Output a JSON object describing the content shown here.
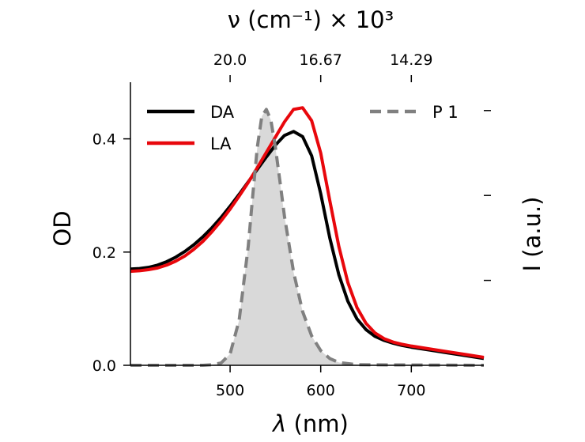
{
  "chart_data": {
    "type": "line",
    "title": "",
    "xlabel_symbol": "λ",
    "xlabel_unit": " (nm)",
    "ylabel": "OD",
    "y2label": "I (a.u.)",
    "x2label": "ν (cm⁻¹) × 10³",
    "xlim": [
      390,
      780
    ],
    "ylim": [
      0,
      0.5
    ],
    "xticks": [
      500,
      600,
      700
    ],
    "yticks": [
      0.0,
      0.2,
      0.4
    ],
    "ytick_labels": [
      "0.0",
      "0.2",
      "0.4"
    ],
    "x2ticks": [
      {
        "at_nm": 500,
        "label": "20.0"
      },
      {
        "at_nm": 600,
        "label": "16.67"
      },
      {
        "at_nm": 700,
        "label": "14.29"
      }
    ],
    "grid": false,
    "legend": {
      "left_position": "top-left",
      "right_position": "top-right"
    },
    "series": [
      {
        "name": "DA",
        "color": "#000000",
        "style": "solid",
        "x": [
          390,
          400,
          410,
          420,
          430,
          440,
          450,
          460,
          470,
          480,
          490,
          500,
          510,
          520,
          530,
          540,
          550,
          560,
          570,
          580,
          590,
          600,
          610,
          620,
          630,
          640,
          650,
          660,
          670,
          680,
          690,
          700,
          720,
          740,
          760,
          780
        ],
        "y": [
          0.17,
          0.171,
          0.173,
          0.177,
          0.183,
          0.191,
          0.201,
          0.213,
          0.227,
          0.243,
          0.261,
          0.281,
          0.302,
          0.324,
          0.346,
          0.368,
          0.389,
          0.406,
          0.413,
          0.404,
          0.37,
          0.303,
          0.225,
          0.16,
          0.113,
          0.082,
          0.063,
          0.051,
          0.044,
          0.039,
          0.035,
          0.032,
          0.027,
          0.022,
          0.017,
          0.012
        ]
      },
      {
        "name": "LA",
        "color": "#e8070c",
        "style": "solid",
        "x": [
          390,
          400,
          410,
          420,
          430,
          440,
          450,
          460,
          470,
          480,
          490,
          500,
          510,
          520,
          530,
          540,
          550,
          560,
          570,
          580,
          590,
          600,
          610,
          620,
          630,
          640,
          650,
          660,
          670,
          680,
          690,
          700,
          720,
          740,
          760,
          780
        ],
        "y": [
          0.166,
          0.167,
          0.169,
          0.172,
          0.177,
          0.184,
          0.193,
          0.205,
          0.219,
          0.236,
          0.255,
          0.276,
          0.299,
          0.323,
          0.349,
          0.376,
          0.403,
          0.43,
          0.452,
          0.455,
          0.432,
          0.375,
          0.291,
          0.21,
          0.146,
          0.102,
          0.074,
          0.057,
          0.047,
          0.041,
          0.037,
          0.034,
          0.029,
          0.024,
          0.019,
          0.014
        ]
      },
      {
        "name": "P 1",
        "color": "#808080",
        "style": "dashed",
        "fill": "#d9d9d9",
        "x": [
          390,
          470,
          480,
          490,
          500,
          510,
          520,
          525,
          530,
          535,
          540,
          545,
          550,
          555,
          560,
          570,
          580,
          590,
          600,
          610,
          620,
          640,
          780
        ],
        "y": [
          0.0,
          0.0,
          0.001,
          0.004,
          0.02,
          0.08,
          0.21,
          0.3,
          0.385,
          0.44,
          0.452,
          0.433,
          0.385,
          0.325,
          0.263,
          0.165,
          0.095,
          0.052,
          0.026,
          0.012,
          0.005,
          0.001,
          0.0
        ]
      }
    ]
  }
}
